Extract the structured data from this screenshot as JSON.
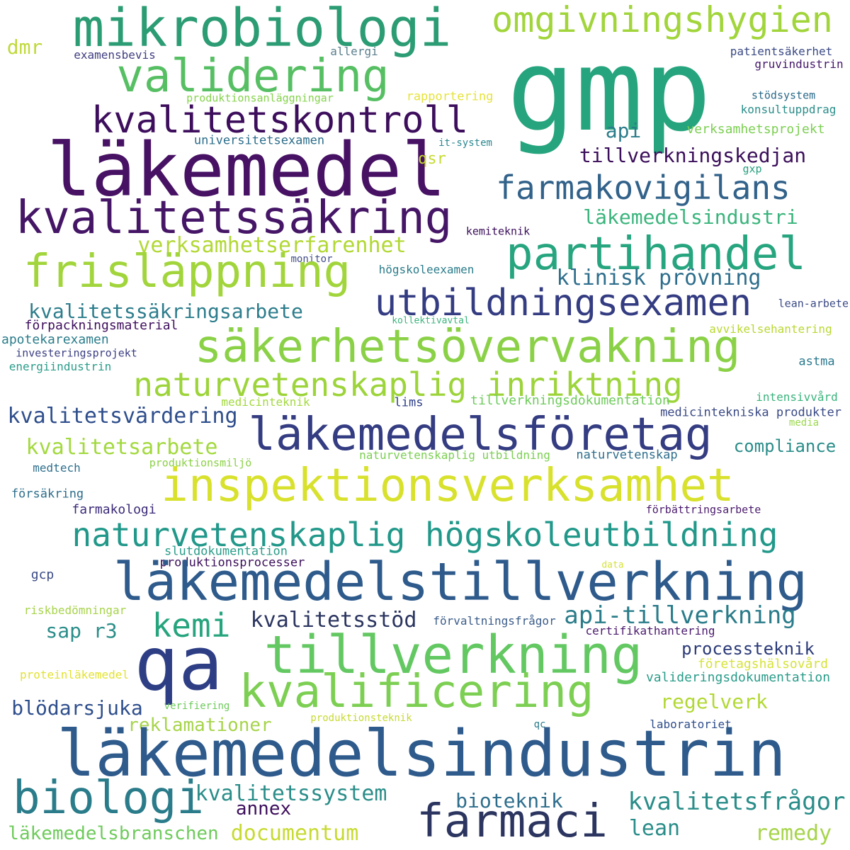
{
  "words": [
    {
      "text": "gmp",
      "color": "#26a47d"
    },
    {
      "text": "läkemedel",
      "color": "#471164"
    },
    {
      "text": "mikrobiologi",
      "color": "#2b9c73"
    },
    {
      "text": "omgivningshygien",
      "color": "#a1d53b"
    },
    {
      "text": "validering",
      "color": "#57bf63"
    },
    {
      "text": "dmr",
      "color": "#c0d93b"
    },
    {
      "text": "examensbevis",
      "color": "#3f3d80"
    },
    {
      "text": "allergi",
      "color": "#5b7f8d"
    },
    {
      "text": "patientsäkerhet",
      "color": "#3a4a85"
    },
    {
      "text": "gruvindustrin",
      "color": "#45186a"
    },
    {
      "text": "produktionsanläggningar",
      "color": "#85d34c"
    },
    {
      "text": "rapportering",
      "color": "#e5e33b"
    },
    {
      "text": "stödsystem",
      "color": "#2c6b8a"
    },
    {
      "text": "konsultuppdrag",
      "color": "#2a8d89"
    },
    {
      "text": "kvalitetskontroll",
      "color": "#3d0e5c"
    },
    {
      "text": "api",
      "color": "#2a7c8a"
    },
    {
      "text": "verksamhetsprojekt",
      "color": "#7ccf52"
    },
    {
      "text": "universitetsexamen",
      "color": "#2b6c8a"
    },
    {
      "text": "it-system",
      "color": "#2c8890"
    },
    {
      "text": "qsr",
      "color": "#c7da32"
    },
    {
      "text": "tillverkningskedjan",
      "color": "#3b0f5a"
    },
    {
      "text": "gxp",
      "color": "#27a07e"
    },
    {
      "text": "farmakovigilans",
      "color": "#32628a"
    },
    {
      "text": "kvalitetssäkring",
      "color": "#451566"
    },
    {
      "text": "läkemedelsindustri",
      "color": "#3ab47c"
    },
    {
      "text": "kemiteknik",
      "color": "#3b0f5a"
    },
    {
      "text": "partihandel",
      "color": "#27a57f"
    },
    {
      "text": "verksamhetserfarenhet",
      "color": "#b2d835"
    },
    {
      "text": "monitor",
      "color": "#424d87"
    },
    {
      "text": "frisläppning",
      "color": "#a1d53b"
    },
    {
      "text": "klinisk prövning",
      "color": "#2e6e8c"
    },
    {
      "text": "högskoleexamen",
      "color": "#2a7c8a"
    },
    {
      "text": "utbildningsexamen",
      "color": "#343c82"
    },
    {
      "text": "lean-arbete",
      "color": "#3a4a85"
    },
    {
      "text": "kvalitetssäkringsarbete",
      "color": "#2d7d8c"
    },
    {
      "text": "kollektivavtal",
      "color": "#3ab47c"
    },
    {
      "text": "förpackningsmaterial",
      "color": "#3d0e5c"
    },
    {
      "text": "avvikelsehantering",
      "color": "#b8d832"
    },
    {
      "text": "säkerhetsövervakning",
      "color": "#8bd147"
    },
    {
      "text": "apotekarexamen",
      "color": "#2a7c8a"
    },
    {
      "text": "investeringsprojekt",
      "color": "#3b3f82"
    },
    {
      "text": "astma",
      "color": "#2a788e"
    },
    {
      "text": "energiindustrin",
      "color": "#2a9c89"
    },
    {
      "text": "naturvetenskaplig inriktning",
      "color": "#9cd43a"
    },
    {
      "text": "intensivvård",
      "color": "#3ab47c"
    },
    {
      "text": "medicinteknik",
      "color": "#a3d93f"
    },
    {
      "text": "lims",
      "color": "#2c3d86"
    },
    {
      "text": "tillverkningsdokumentation",
      "color": "#6ecb5b"
    },
    {
      "text": "medicintekniska produkter",
      "color": "#3a4a85"
    },
    {
      "text": "kvalitetsvärdering",
      "color": "#2e4e8c"
    },
    {
      "text": "media",
      "color": "#9ad84a"
    },
    {
      "text": "läkemedelsföretag",
      "color": "#343c82"
    },
    {
      "text": "kvalitetsarbete",
      "color": "#a3d93f"
    },
    {
      "text": "compliance",
      "color": "#2a8d89"
    },
    {
      "text": "naturvetenskaplig utbildning",
      "color": "#7ccf52"
    },
    {
      "text": "naturvetenskap",
      "color": "#2e6e8c"
    },
    {
      "text": "medtech",
      "color": "#2e6e8c"
    },
    {
      "text": "produktionsmiljö",
      "color": "#8bd147"
    },
    {
      "text": "inspektionsverksamhet",
      "color": "#d8e12c"
    },
    {
      "text": "försäkring",
      "color": "#2e6e8c"
    },
    {
      "text": "farmakologi",
      "color": "#3b2a78"
    },
    {
      "text": "förbättringsarbete",
      "color": "#4a1a6d"
    },
    {
      "text": "naturvetenskaplig högskoleutbildning",
      "color": "#21988a"
    },
    {
      "text": "slutdokumentation",
      "color": "#2a9c89"
    },
    {
      "text": "produktionsprocesser",
      "color": "#3b0f5a"
    },
    {
      "text": "data",
      "color": "#d6e33a"
    },
    {
      "text": "gcp",
      "color": "#3a4a85"
    },
    {
      "text": "läkemedelstillverkning",
      "color": "#2e5b8c"
    },
    {
      "text": "riskbedömningar",
      "color": "#a7d44b"
    },
    {
      "text": "kemi",
      "color": "#26a47d"
    },
    {
      "text": "kvalitetsstöd",
      "color": "#2b355f"
    },
    {
      "text": "api-tillverkning",
      "color": "#2a7c8a"
    },
    {
      "text": "förvaltningsfrågor",
      "color": "#3b5c8a"
    },
    {
      "text": "sap r3",
      "color": "#2a8d89"
    },
    {
      "text": "certifikathantering",
      "color": "#4a1a6d"
    },
    {
      "text": "qa",
      "color": "#2e3e85"
    },
    {
      "text": "tillverkning",
      "color": "#63c862"
    },
    {
      "text": "processteknik",
      "color": "#2b3a78"
    },
    {
      "text": "företagshälsovård",
      "color": "#d6e33a"
    },
    {
      "text": "proteinläkemedel",
      "color": "#e2e232"
    },
    {
      "text": "kvalificering",
      "color": "#7ccf52"
    },
    {
      "text": "valideringsdokumentation",
      "color": "#2a9c89"
    },
    {
      "text": "blödarsjuka",
      "color": "#2e4e8c"
    },
    {
      "text": "verifiering",
      "color": "#6ecb5b"
    },
    {
      "text": "regelverk",
      "color": "#b2d835"
    },
    {
      "text": "reklamationer",
      "color": "#a7d44b"
    },
    {
      "text": "produktionsteknik",
      "color": "#c7da32"
    },
    {
      "text": "qc",
      "color": "#2a7c8a"
    },
    {
      "text": "laboratoriet",
      "color": "#2e4e8c"
    },
    {
      "text": "läkemedelsindustrin",
      "color": "#2e5b8c"
    },
    {
      "text": "biologi",
      "color": "#2a7c8a"
    },
    {
      "text": "kvalitetssystem",
      "color": "#2a8d89"
    },
    {
      "text": "annex",
      "color": "#3d0e5c"
    },
    {
      "text": "bioteknik",
      "color": "#2e6e8c"
    },
    {
      "text": "kvalitetsfrågor",
      "color": "#2a8d89"
    },
    {
      "text": "farmaci",
      "color": "#2b355f"
    },
    {
      "text": "läkemedelsbranschen",
      "color": "#6ecb5b"
    },
    {
      "text": "documentum",
      "color": "#c7da32"
    },
    {
      "text": "lean",
      "color": "#2a8d89"
    },
    {
      "text": "remedy",
      "color": "#a7d44b"
    }
  ]
}
